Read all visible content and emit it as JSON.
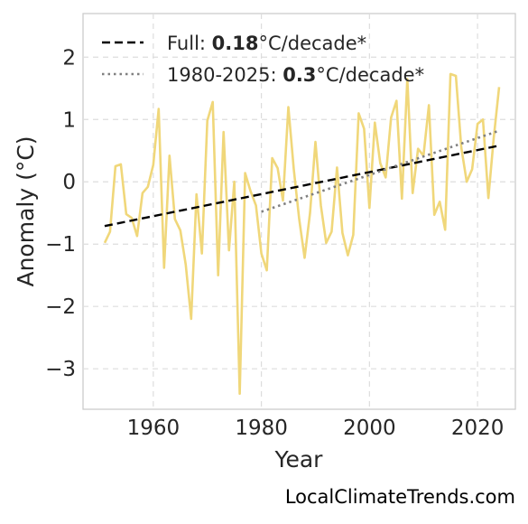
{
  "chart_data": {
    "type": "line",
    "title": "",
    "xlabel": "Year",
    "ylabel": "Anomaly (°C)",
    "xlim": [
      1947,
      2027
    ],
    "ylim": [
      -3.65,
      2.7
    ],
    "xticks": [
      1960,
      1980,
      2000,
      2020
    ],
    "xtick_labels": [
      "1960",
      "1980",
      "2000",
      "2020"
    ],
    "yticks": [
      -3,
      -2,
      -1,
      0,
      1,
      2
    ],
    "ytick_labels": [
      "−3",
      "−2",
      "−1",
      "0",
      "1",
      "2"
    ],
    "grid": true,
    "legend_position": "top-left",
    "legend": [
      {
        "prefix": "Full: ",
        "value": "0.18",
        "suffix": "°C/decade*",
        "style": "dashed",
        "color": "#000000"
      },
      {
        "prefix": "1980-2025: ",
        "value": "0.3",
        "suffix": "°C/decade*",
        "style": "dotted",
        "color": "#808080"
      }
    ],
    "series": [
      {
        "color": "#f0d77a",
        "x": [
          1951,
          1952,
          1953,
          1954,
          1955,
          1956,
          1957,
          1958,
          1959,
          1960,
          1961,
          1962,
          1963,
          1964,
          1965,
          1966,
          1967,
          1968,
          1969,
          1970,
          1971,
          1972,
          1973,
          1974,
          1975,
          1976,
          1977,
          1978,
          1979,
          1980,
          1981,
          1982,
          1983,
          1984,
          1985,
          1986,
          1987,
          1988,
          1989,
          1990,
          1991,
          1992,
          1993,
          1994,
          1995,
          1996,
          1997,
          1998,
          1999,
          2000,
          2001,
          2002,
          2003,
          2004,
          2005,
          2006,
          2007,
          2008,
          2009,
          2010,
          2011,
          2012,
          2013,
          2014,
          2015,
          2016,
          2017,
          2018,
          2019,
          2020,
          2021,
          2022,
          2023,
          2024
        ],
        "y": [
          -0.98,
          -0.8,
          0.25,
          0.28,
          -0.52,
          -0.58,
          -0.87,
          -0.18,
          -0.08,
          0.27,
          1.17,
          -1.38,
          0.42,
          -0.6,
          -0.78,
          -1.33,
          -2.2,
          -0.2,
          -1.15,
          0.98,
          1.28,
          -1.5,
          0.8,
          -1.1,
          0.0,
          -3.4,
          0.14,
          -0.15,
          -0.38,
          -1.15,
          -1.42,
          0.38,
          0.22,
          -0.3,
          1.2,
          0.2,
          -0.6,
          -1.22,
          -0.5,
          0.64,
          -0.38,
          -0.98,
          -0.8,
          0.23,
          -0.82,
          -1.18,
          -0.85,
          1.1,
          0.85,
          -0.42,
          0.95,
          0.3,
          0.07,
          1.03,
          1.3,
          -0.27,
          1.65,
          -0.18,
          0.53,
          0.42,
          1.23,
          -0.53,
          -0.32,
          -0.77,
          1.73,
          1.7,
          0.55,
          0.0,
          0.2,
          0.93,
          1.0,
          -0.26,
          0.7,
          1.52
        ]
      }
    ],
    "trends": [
      {
        "name": "full",
        "x": [
          1951,
          2024
        ],
        "y": [
          -0.71,
          0.58
        ],
        "style": "dashed",
        "color": "#000000"
      },
      {
        "name": "recent",
        "x": [
          1980,
          2024
        ],
        "y": [
          -0.48,
          0.82
        ],
        "style": "dotted",
        "color": "#808080"
      }
    ]
  },
  "credit": "LocalClimateTrends.com"
}
